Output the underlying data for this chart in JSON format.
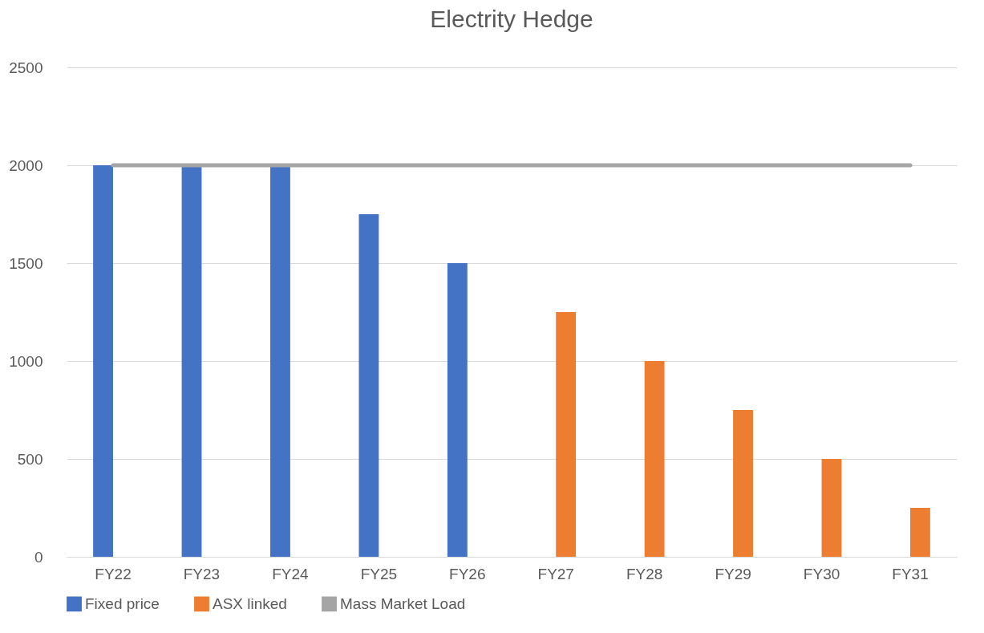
{
  "chart_data": {
    "type": "bar",
    "title": "Electrity Hedge",
    "categories": [
      "FY22",
      "FY23",
      "FY24",
      "FY25",
      "FY26",
      "FY27",
      "FY28",
      "FY29",
      "FY30",
      "FY31"
    ],
    "series": [
      {
        "name": "Fixed price",
        "color": "#4472c4",
        "values": [
          2000,
          2000,
          2000,
          1750,
          1500,
          null,
          null,
          null,
          null,
          null
        ]
      },
      {
        "name": "ASX linked",
        "color": "#ed7d31",
        "values": [
          null,
          null,
          null,
          null,
          null,
          1250,
          1000,
          750,
          500,
          250
        ]
      },
      {
        "name": "Mass Market Load",
        "type": "line",
        "color": "#a5a5a5",
        "values": [
          2000,
          2000,
          2000,
          2000,
          2000,
          2000,
          2000,
          2000,
          2000,
          2000
        ]
      }
    ],
    "ylim": [
      0,
      2500
    ],
    "yticks": [
      0,
      500,
      1000,
      1500,
      2000,
      2500
    ],
    "grid": "y",
    "legend": "bottom"
  }
}
